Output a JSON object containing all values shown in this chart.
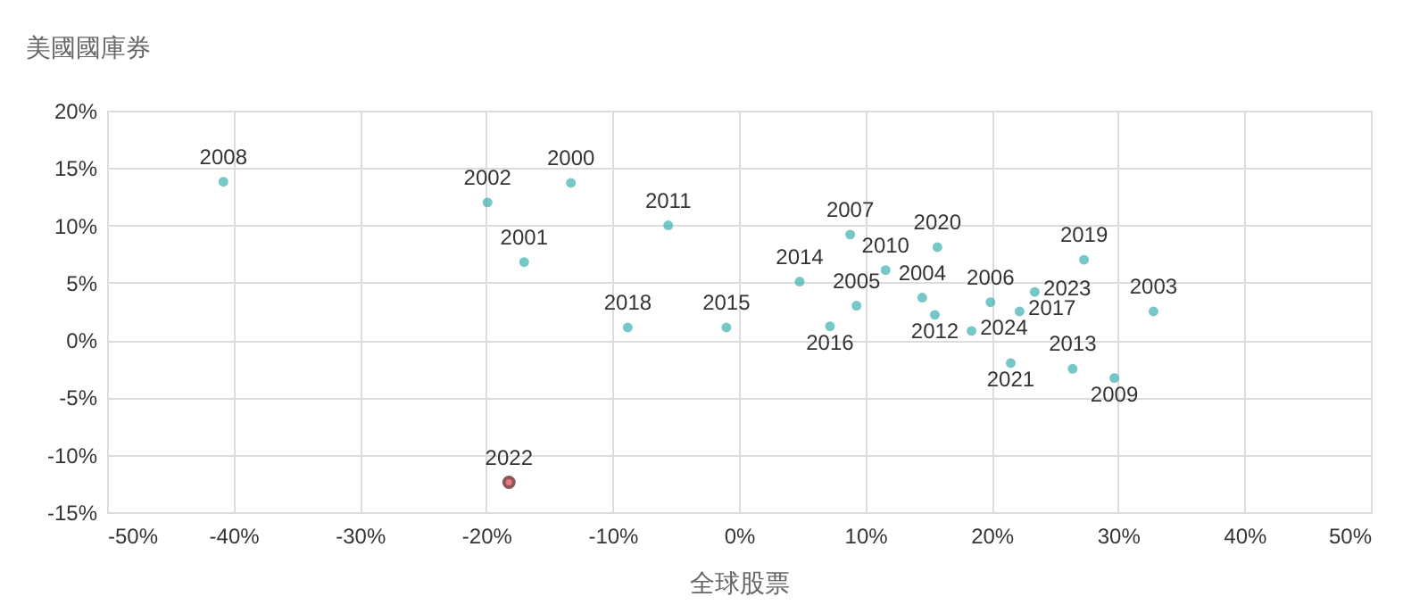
{
  "chart_data": {
    "type": "scatter",
    "xlabel": "全球股票",
    "ylabel": "美國國庫券",
    "x": [
      -40.8,
      -19.9,
      -13.3,
      -17.0,
      -5.6,
      -8.8,
      -1.0,
      -18.2,
      8.8,
      4.8,
      11.6,
      15.7,
      9.3,
      7.2,
      14.5,
      15.5,
      18.4,
      19.9,
      23.4,
      22.2,
      27.3,
      32.8,
      21.5,
      26.4,
      29.7
    ],
    "values": [
      13.8,
      12.0,
      13.7,
      6.8,
      10.0,
      1.1,
      1.1,
      -12.4,
      9.2,
      5.1,
      6.1,
      8.1,
      3.0,
      1.2,
      3.7,
      2.2,
      0.8,
      3.3,
      4.2,
      2.5,
      7.0,
      2.5,
      -2.0,
      -2.5,
      -3.3
    ],
    "colors": [
      "#3aafb0",
      "#3aafb0",
      "#3aafb0",
      "#3aafb0",
      "#3aafb0",
      "#3aafb0",
      "#3aafb0",
      "#e0404f",
      "#3aafb0",
      "#3aafb0",
      "#3aafb0",
      "#3aafb0",
      "#3aafb0",
      "#3aafb0",
      "#3aafb0",
      "#3aafb0",
      "#3aafb0",
      "#3aafb0",
      "#3aafb0",
      "#3aafb0",
      "#3aafb0",
      "#3aafb0",
      "#3aafb0",
      "#3aafb0",
      "#3aafb0"
    ],
    "annotations": [
      {
        "text": "2008",
        "x": -40.8,
        "y": 13.8
      },
      {
        "text": "2002",
        "x": -19.9,
        "y": 12.0
      },
      {
        "text": "2000",
        "x": -13.3,
        "y": 13.7
      },
      {
        "text": "2001",
        "x": -17.0,
        "y": 6.8
      },
      {
        "text": "2011",
        "x": -5.6,
        "y": 10.0
      },
      {
        "text": "2018",
        "x": -8.8,
        "y": 1.1
      },
      {
        "text": "2015",
        "x": -1.0,
        "y": 1.1
      },
      {
        "text": "2022",
        "x": -18.2,
        "y": -12.4
      },
      {
        "text": "2007",
        "x": 8.8,
        "y": 9.2
      },
      {
        "text": "2014",
        "x": 4.8,
        "y": 5.1
      },
      {
        "text": "2010",
        "x": 11.6,
        "y": 6.1
      },
      {
        "text": "2020",
        "x": 15.7,
        "y": 8.1
      },
      {
        "text": "2005",
        "x": 9.3,
        "y": 3.0
      },
      {
        "text": "2016",
        "x": 7.2,
        "y": 1.2
      },
      {
        "text": "2004",
        "x": 14.5,
        "y": 3.7
      },
      {
        "text": "2012",
        "x": 15.5,
        "y": 2.2
      },
      {
        "text": "2024",
        "x": 18.4,
        "y": 0.8
      },
      {
        "text": "2006",
        "x": 19.9,
        "y": 3.3
      },
      {
        "text": "2023",
        "x": 23.4,
        "y": 4.2
      },
      {
        "text": "2017",
        "x": 22.2,
        "y": 2.5
      },
      {
        "text": "2019",
        "x": 27.3,
        "y": 7.0
      },
      {
        "text": "2003",
        "x": 32.8,
        "y": 2.5
      },
      {
        "text": "2021",
        "x": 21.5,
        "y": -2.0
      },
      {
        "text": "2013",
        "x": 26.4,
        "y": -2.5
      },
      {
        "text": "2009",
        "x": 29.7,
        "y": -3.3
      }
    ],
    "xlim": [
      -50,
      50
    ],
    "xticks": [
      {
        "value": -50,
        "label": "-50%"
      },
      {
        "value": -40,
        "label": "-40%"
      },
      {
        "value": -30,
        "label": "-30%"
      },
      {
        "value": -20,
        "label": "-20%"
      },
      {
        "value": -10,
        "label": "-10%"
      },
      {
        "value": 0,
        "label": "0%"
      },
      {
        "value": 10,
        "label": "10%"
      },
      {
        "value": 20,
        "label": "20%"
      },
      {
        "value": 30,
        "label": "30%"
      },
      {
        "value": 40,
        "label": "40%"
      },
      {
        "value": 50,
        "label": "50%"
      }
    ],
    "ylim": [
      -15,
      20
    ],
    "yticks": [
      {
        "value": -15,
        "label": "-15%"
      },
      {
        "value": -10,
        "label": "-10%"
      },
      {
        "value": -5,
        "label": "-5%"
      },
      {
        "value": 0,
        "label": "0%"
      },
      {
        "value": 5,
        "label": "5%"
      },
      {
        "value": 10,
        "label": "10%"
      },
      {
        "value": 15,
        "label": "15%"
      },
      {
        "value": 20,
        "label": "20%"
      }
    ],
    "grid": true,
    "marker": "circle"
  }
}
